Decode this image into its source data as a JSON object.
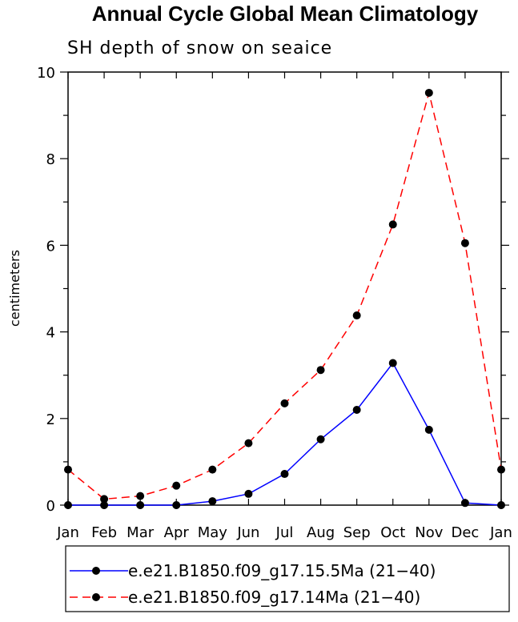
{
  "chart_data": {
    "type": "line",
    "title": "Annual Cycle Global Mean Climatology",
    "subtitle": "SH depth of snow on seaice",
    "xlabel": "",
    "ylabel": "centimeters",
    "categories": [
      "Jan",
      "Feb",
      "Mar",
      "Apr",
      "May",
      "Jun",
      "Jul",
      "Aug",
      "Sep",
      "Oct",
      "Nov",
      "Dec",
      "Jan"
    ],
    "ylim": [
      0,
      10
    ],
    "yticks": [
      "0",
      "2",
      "4",
      "6",
      "8",
      "10"
    ],
    "grid": false,
    "legend_position": "bottom",
    "series": [
      {
        "name": "e.e21.B1850.f09_g17.15.5Ma (21−40)",
        "color": "#0000ff",
        "line_style": "solid",
        "values": [
          0.0,
          0.0,
          0.0,
          0.0,
          0.09,
          0.26,
          0.72,
          1.52,
          2.2,
          3.28,
          1.74,
          0.05,
          0.0
        ]
      },
      {
        "name": "e.e21.B1850.f09_g17.14Ma (21−40)",
        "color": "#ff0000",
        "line_style": "dashed",
        "values": [
          0.82,
          0.14,
          0.21,
          0.45,
          0.82,
          1.43,
          2.35,
          3.12,
          4.38,
          6.48,
          9.52,
          6.05,
          0.82
        ]
      }
    ]
  }
}
